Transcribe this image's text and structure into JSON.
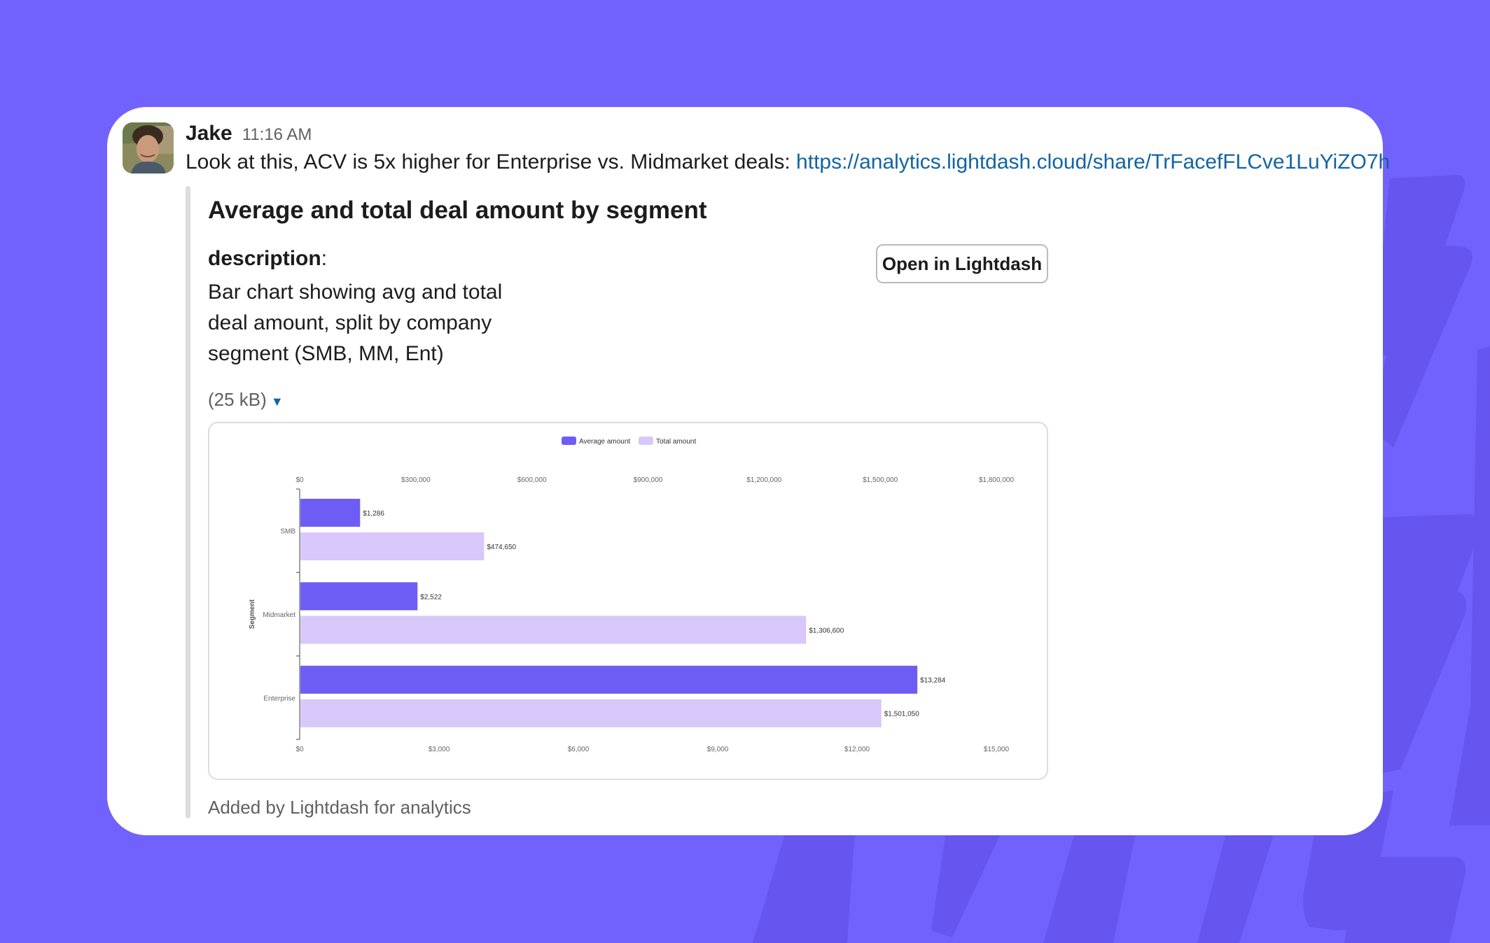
{
  "message": {
    "author": "Jake",
    "timestamp": "11:16 AM",
    "text": "Look at this, ACV is 5x higher for Enterprise vs. Midmarket deals: ",
    "link": "https://analytics.lightdash.cloud/share/TrFacefFLCve1LuYiZO7h"
  },
  "unfurl": {
    "title": "Average and total deal amount by segment",
    "description_label": "description",
    "description_colon": ":",
    "description": "Bar chart showing avg and total deal amount, split by company segment (SMB, MM, Ent)",
    "button_label": "Open in Lightdash",
    "file_size": "(25 kB)",
    "footer": "Added by Lightdash for analytics"
  },
  "chart_data": {
    "type": "bar",
    "orientation": "horizontal",
    "title": "",
    "ylabel": "Segment",
    "categories": [
      "SMB",
      "Midmarket",
      "Enterprise"
    ],
    "series": [
      {
        "name": "Average amount",
        "values": [
          1286,
          2522,
          13284
        ],
        "labels": [
          "$1,286",
          "$2,522",
          "$13,284"
        ],
        "axis": "bottom",
        "color": "#6E5DF5"
      },
      {
        "name": "Total amount",
        "values": [
          474650,
          1306600,
          1501050
        ],
        "labels": [
          "$474,650",
          "$1,306,600",
          "$1,501,050"
        ],
        "axis": "top",
        "color": "#D8C8FA"
      }
    ],
    "top_axis": {
      "ticks": [
        "$0",
        "$300,000",
        "$600,000",
        "$900,000",
        "$1,200,000",
        "$1,500,000",
        "$1,800,000"
      ],
      "range": [
        0,
        1800000
      ]
    },
    "bottom_axis": {
      "ticks": [
        "$0",
        "$3,000",
        "$6,000",
        "$9,000",
        "$12,000",
        "$15,000"
      ],
      "range": [
        0,
        15000
      ]
    },
    "legend_position": "top-center",
    "grid": false
  }
}
